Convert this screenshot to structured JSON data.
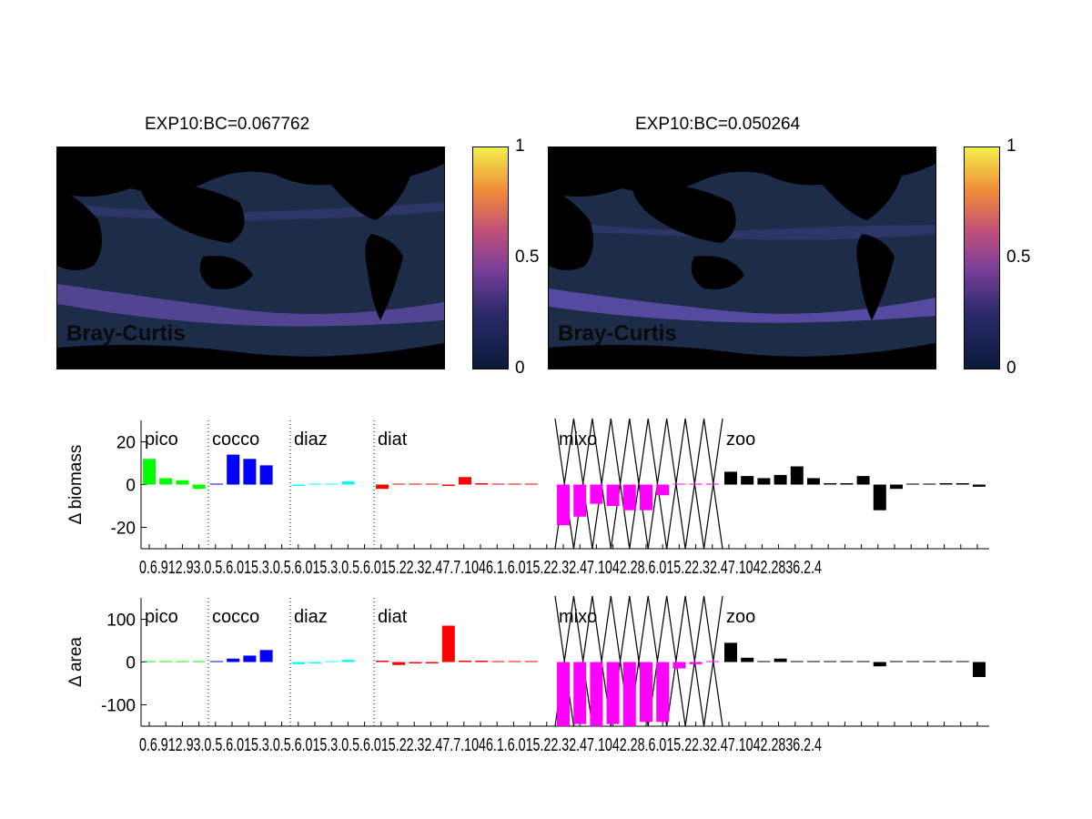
{
  "maps": [
    {
      "title": "EXP10:BC=0.067762",
      "label": "Bray-Curtis",
      "cbar_ticks": [
        "1",
        "0.5",
        "0"
      ]
    },
    {
      "title": "EXP10:BC=0.050264",
      "label": "Bray-Curtis",
      "cbar_ticks": [
        "1",
        "0.5",
        "0"
      ]
    }
  ],
  "colors": {
    "pico": "#00ff00",
    "cocco": "#0000ff",
    "diaz": "#00ffff",
    "diat": "#ff0000",
    "mixo": "#ff00ff",
    "zoo": "#000000"
  },
  "chart_data": [
    {
      "type": "bar",
      "ylabel": "Δ biomass",
      "ylim": [
        -30,
        30
      ],
      "yticks": [
        "20",
        "0",
        "-20"
      ],
      "group_labels": [
        "pico",
        "cocco",
        "diaz",
        "diat",
        "mixo",
        "zoo"
      ],
      "tick_text": "0.6.912.93.0.5.6.015.3.0.5.6.015.3.0.5.6.015.22.32.47.7.1046.1.6.015.22.32.47.1042.28.6.015.22.32.47.1042.2836.2.4",
      "series": [
        {
          "group": "pico",
          "values": [
            12,
            3,
            2,
            -2
          ]
        },
        {
          "group": "cocco",
          "values": [
            0,
            14,
            12,
            9
          ]
        },
        {
          "group": "diaz",
          "values": [
            -0.5,
            0,
            0,
            1.5
          ]
        },
        {
          "group": "diat",
          "values": [
            -2,
            0,
            0,
            0,
            -0.5,
            3.5,
            0.5,
            0,
            0,
            0
          ]
        },
        {
          "group": "mixo",
          "values": [
            -19,
            -15,
            -9,
            -10,
            -12,
            -12,
            -5,
            0,
            0,
            0
          ]
        },
        {
          "group": "zoo",
          "values": [
            6,
            4,
            3,
            4.5,
            8.5,
            3,
            0.5,
            0.5,
            4,
            -12,
            -2,
            0,
            0,
            0.5,
            0.5,
            -1
          ]
        }
      ]
    },
    {
      "type": "bar",
      "ylabel": "Δ area",
      "ylim": [
        -150,
        150
      ],
      "yticks": [
        "100",
        "0",
        "-100"
      ],
      "group_labels": [
        "pico",
        "cocco",
        "diaz",
        "diat",
        "mixo",
        "zoo"
      ],
      "tick_text": "0.6.912.93.0.5.6.015.3.0.5.6.015.3.0.5.6.015.22.32.47.7.1046.1.6.015.22.32.47.1042.28.6.015.22.32.47.1042.2836.2.4",
      "series": [
        {
          "group": "pico",
          "values": [
            0,
            0,
            0,
            0
          ]
        },
        {
          "group": "cocco",
          "values": [
            0,
            8,
            15,
            28
          ]
        },
        {
          "group": "diaz",
          "values": [
            -5,
            -3,
            0,
            5
          ]
        },
        {
          "group": "diat",
          "values": [
            1,
            -7,
            -3,
            -2,
            85,
            3,
            2,
            0,
            0,
            0
          ]
        },
        {
          "group": "mixo",
          "values": [
            -150,
            -145,
            -150,
            -145,
            -150,
            -140,
            -140,
            -15,
            -5,
            0
          ]
        },
        {
          "group": "zoo",
          "values": [
            45,
            10,
            0,
            8,
            0,
            0,
            0,
            0,
            0,
            -10,
            0,
            0,
            0,
            0,
            0,
            -35
          ]
        }
      ]
    }
  ]
}
